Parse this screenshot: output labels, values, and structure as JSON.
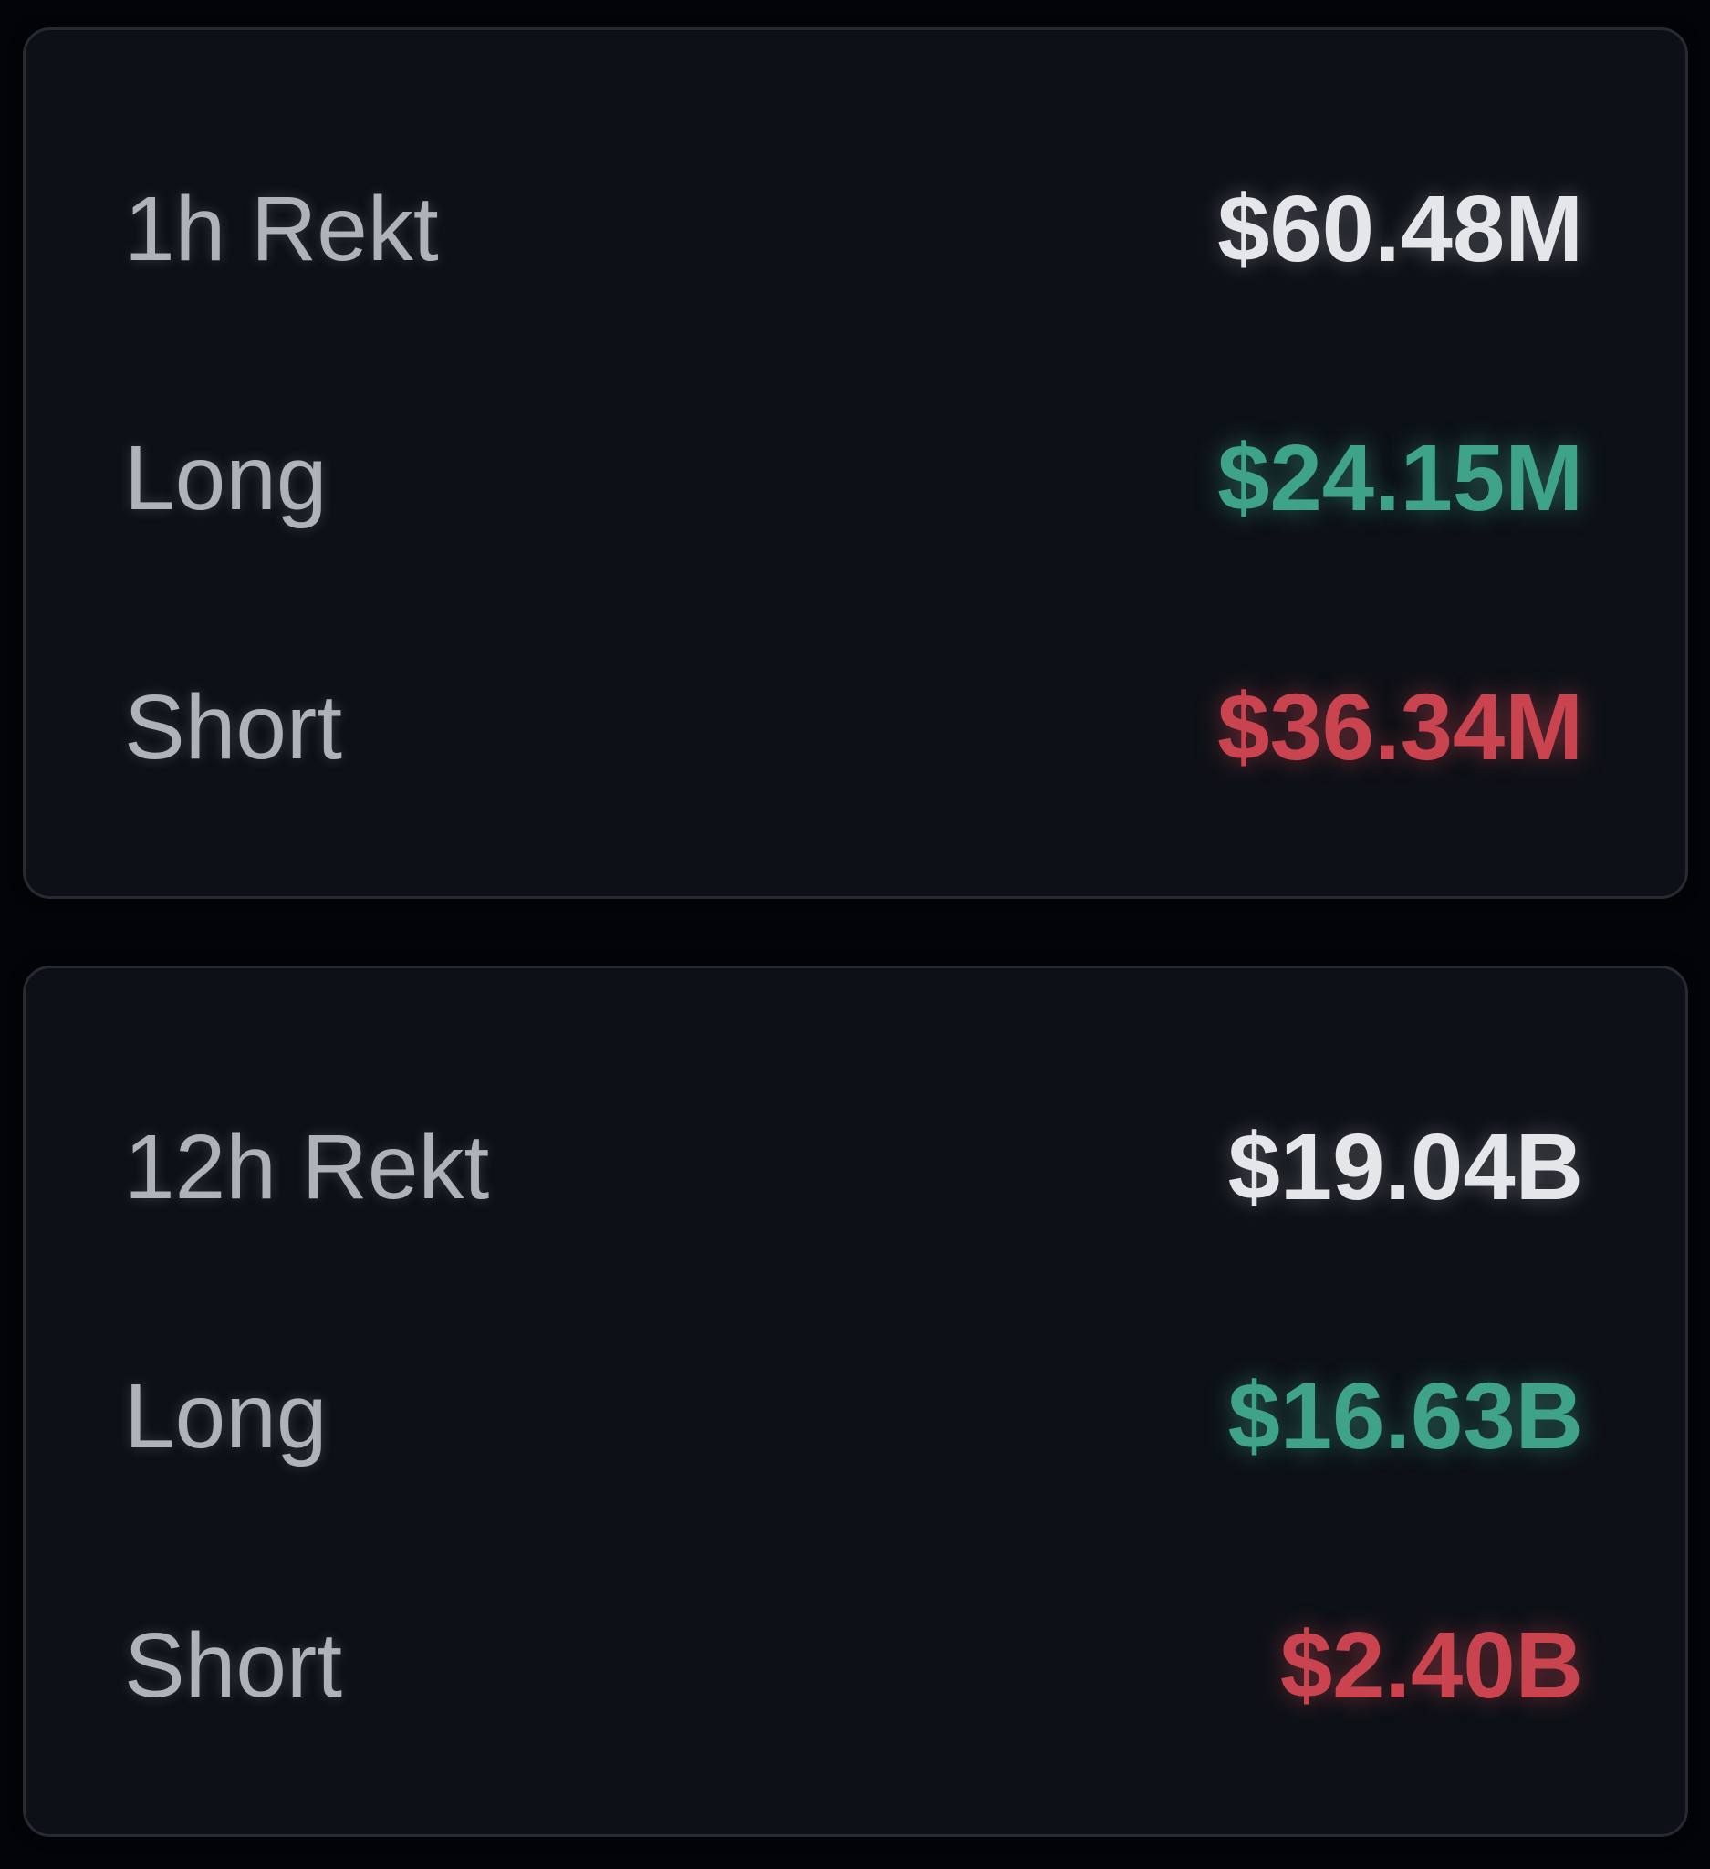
{
  "theme": {
    "page_background": "#020408",
    "card_background": "#0d1117",
    "card_border": "#262b33",
    "label_color": "#aeb3ba",
    "total_value_color": "#e4e6ea",
    "long_value_color": "#3fa389",
    "short_value_color": "#c9444f"
  },
  "cards": [
    {
      "title": "1h Rekt",
      "total": "$60.48M",
      "rows": [
        {
          "label": "Long",
          "value": "$24.15M"
        },
        {
          "label": "Short",
          "value": "$36.34M"
        }
      ]
    },
    {
      "title": "12h Rekt",
      "total": "$19.04B",
      "rows": [
        {
          "label": "Long",
          "value": "$16.63B"
        },
        {
          "label": "Short",
          "value": "$2.40B"
        }
      ]
    }
  ]
}
